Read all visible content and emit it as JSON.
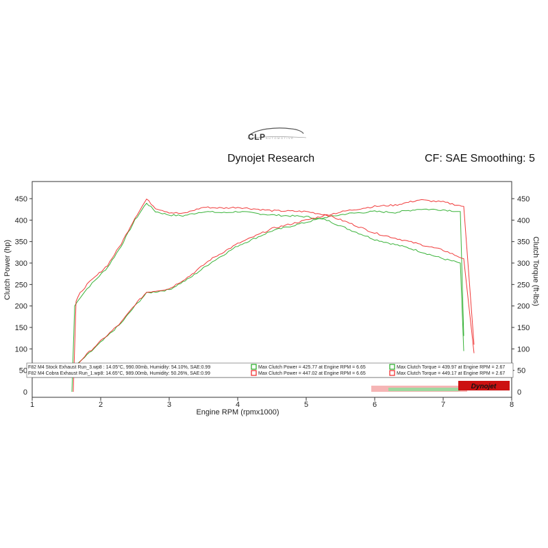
{
  "logo": {
    "name": "CLP",
    "sub": "AUTOMOTIVE"
  },
  "header": {
    "title": "Dynojet Research",
    "cf": "CF: SAE Smoothing: 5"
  },
  "chart_data": {
    "type": "line",
    "title": "Dynojet Research",
    "subtitle": "CF: SAE Smoothing: 5",
    "xlabel": "Engine RPM (rpmx1000)",
    "ylabel_left": "Clutch Power (hp)",
    "ylabel_right": "Clutch Torque (ft-lbs)",
    "xlim": [
      1,
      8
    ],
    "ylim": [
      0,
      460
    ],
    "x_ticks": [
      "1",
      "2",
      "3",
      "4",
      "5",
      "6",
      "7",
      "8"
    ],
    "y_ticks_left": [
      "0",
      "50",
      "100",
      "150",
      "200",
      "250",
      "300",
      "350",
      "400",
      "450"
    ],
    "y_ticks_right": [
      "0",
      "50",
      "100",
      "150",
      "200",
      "250",
      "300",
      "350",
      "400",
      "450"
    ],
    "grid": false,
    "legend_position": "bottom-left",
    "colors": {
      "stock": "#22aa22",
      "cobra": "#ee2222"
    },
    "legend": [
      {
        "file": "F82 M4 Stock Exhaust Run_3.wp8 : 14.05°C, 990.00mb, Humidity: 54.10%, SAE:0.99",
        "power": "Max Clutch Power = 425.77 at Engine RPM = 6.65",
        "torque": "Max Clutch Torque = 439.97 at Engine RPM = 2.67"
      },
      {
        "file": "F82 M4 Cobra Exhaust Run_1.wp8: 14.65°C, 989.00mb, Humidity: 50.26%, SAE:0.99",
        "power": "Max Clutch Power = 447.02 at Engine RPM = 6.65",
        "torque": "Max Clutch Torque = 449.17 at Engine RPM = 2.67"
      }
    ],
    "series": [
      {
        "name": "F82 M4 Stock Exhaust Run_3",
        "quantity": "Clutch Torque",
        "color": "#22aa22",
        "x": [
          1.58,
          1.62,
          1.7,
          1.8,
          1.95,
          2.1,
          2.3,
          2.5,
          2.67,
          2.8,
          3.0,
          3.2,
          3.5,
          3.8,
          4.0,
          4.5,
          5.0,
          5.3,
          5.6,
          6.0,
          6.5,
          7.0,
          7.25,
          7.3
        ],
        "values": [
          0,
          200,
          220,
          240,
          265,
          290,
          340,
          400,
          440,
          420,
          412,
          410,
          420,
          417,
          420,
          412,
          408,
          400,
          380,
          355,
          335,
          310,
          300,
          95
        ]
      },
      {
        "name": "F82 M4 Stock Exhaust Run_3",
        "quantity": "Clutch Power",
        "color": "#22aa22",
        "x": [
          1.62,
          1.8,
          2.0,
          2.3,
          2.5,
          2.67,
          3.0,
          3.3,
          3.6,
          4.0,
          4.5,
          5.0,
          5.3,
          5.6,
          6.0,
          6.3,
          6.65,
          7.0,
          7.25,
          7.3
        ],
        "values": [
          60,
          85,
          115,
          160,
          200,
          230,
          238,
          265,
          300,
          340,
          375,
          395,
          407,
          415,
          420,
          418,
          425.77,
          424,
          420,
          130
        ]
      },
      {
        "name": "F82 M4 Cobra Exhaust Run_1",
        "quantity": "Clutch Torque",
        "color": "#ee2222",
        "x": [
          1.6,
          1.64,
          1.7,
          1.8,
          1.95,
          2.1,
          2.3,
          2.5,
          2.67,
          2.8,
          3.0,
          3.2,
          3.5,
          3.8,
          4.0,
          4.5,
          5.0,
          5.3,
          5.6,
          6.0,
          6.5,
          7.0,
          7.3,
          7.45
        ],
        "values": [
          0,
          210,
          230,
          250,
          272,
          295,
          345,
          405,
          449,
          428,
          418,
          415,
          430,
          428,
          430,
          422,
          420,
          412,
          395,
          370,
          350,
          330,
          310,
          90
        ]
      },
      {
        "name": "F82 M4 Cobra Exhaust Run_1",
        "quantity": "Clutch Power",
        "color": "#ee2222",
        "x": [
          1.64,
          1.8,
          2.0,
          2.3,
          2.5,
          2.67,
          3.0,
          3.3,
          3.6,
          4.0,
          4.5,
          5.0,
          5.3,
          5.6,
          6.0,
          6.3,
          6.65,
          7.0,
          7.3,
          7.45
        ],
        "values": [
          60,
          88,
          118,
          162,
          203,
          232,
          240,
          270,
          308,
          345,
          380,
          400,
          412,
          422,
          432,
          435,
          447.02,
          442,
          432,
          110
        ]
      }
    ],
    "lower_panel": {
      "y_ticks": [
        "0"
      ],
      "note": "Dynojet"
    }
  }
}
